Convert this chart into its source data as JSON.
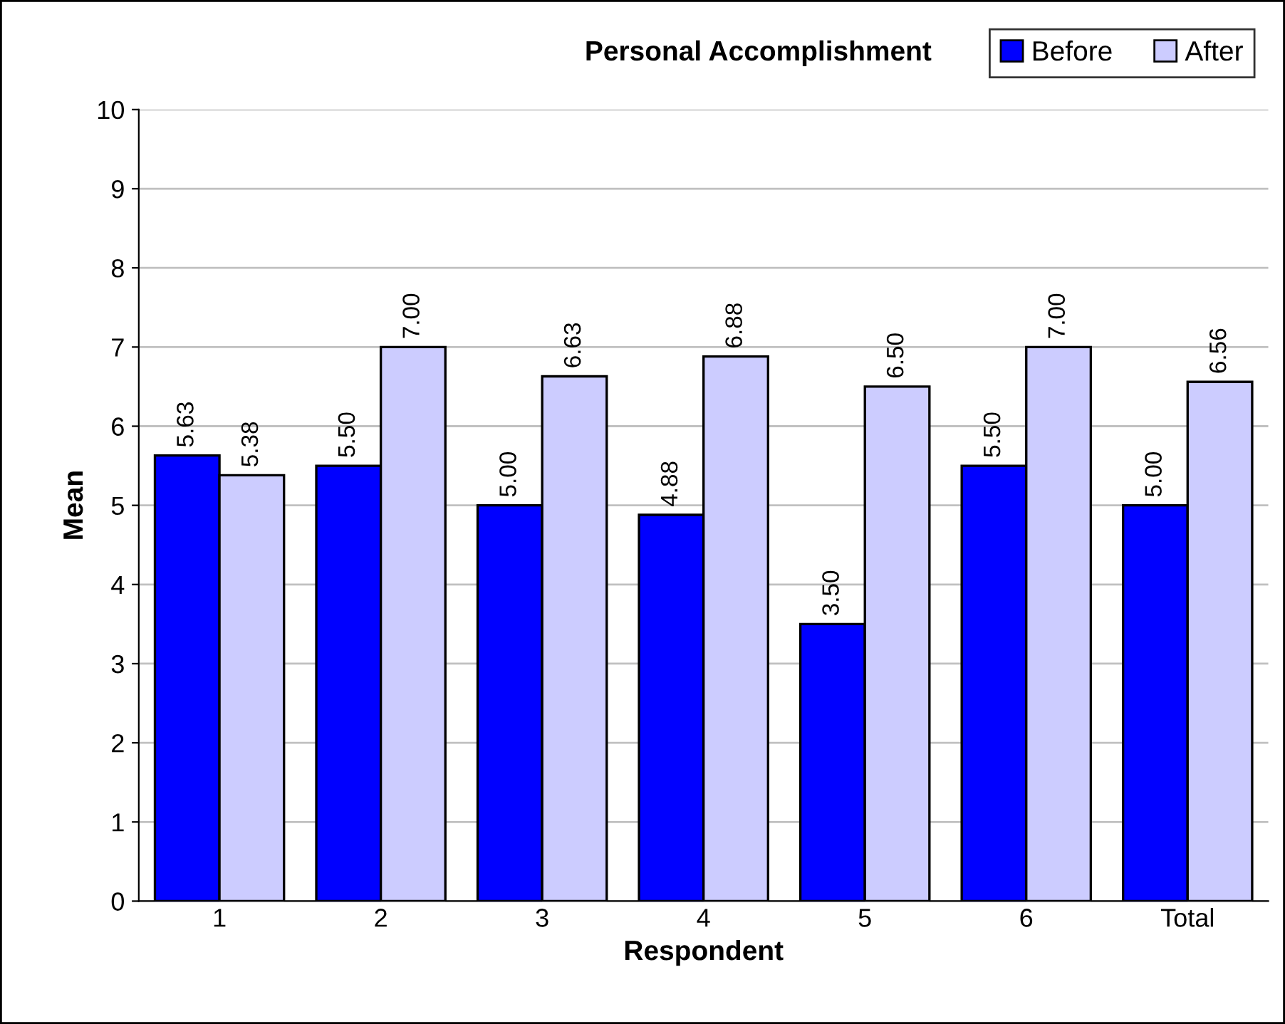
{
  "chart_data": {
    "type": "bar",
    "title": "Personal Accomplishment",
    "xlabel": "Respondent",
    "ylabel": "Mean",
    "categories": [
      "1",
      "2",
      "3",
      "4",
      "5",
      "6",
      "Total"
    ],
    "series": [
      {
        "name": "Before",
        "color": "#0000ff",
        "values": [
          5.63,
          5.5,
          5.0,
          4.88,
          3.5,
          5.5,
          5.0
        ],
        "value_labels": [
          "5.63",
          "5.50",
          "5.00",
          "4.88",
          "3.50",
          "5.50",
          "5.00"
        ]
      },
      {
        "name": "After",
        "color": "#ccccff",
        "values": [
          5.38,
          7.0,
          6.63,
          6.88,
          6.5,
          7.0,
          6.56
        ],
        "value_labels": [
          "5.38",
          "7.00",
          "6.63",
          "6.88",
          "6.50",
          "7.00",
          "6.56"
        ]
      }
    ],
    "ylim": [
      0,
      10
    ],
    "yticks": [
      0,
      1,
      2,
      3,
      4,
      5,
      6,
      7,
      8,
      9,
      10
    ],
    "grid": "y",
    "legend": "top right"
  }
}
